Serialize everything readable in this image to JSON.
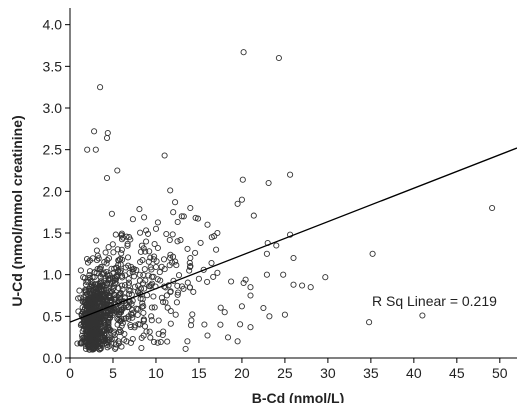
{
  "chart_data": {
    "type": "scatter",
    "xlabel": "B-Cd (nmol/L)",
    "ylabel": "U-Cd (nmol/mmol creatinine)",
    "xlim": [
      0,
      52
    ],
    "ylim": [
      0,
      4.2
    ],
    "xticks": [
      0,
      5,
      10,
      15,
      20,
      25,
      30,
      35,
      40,
      45,
      50
    ],
    "yticks": [
      0.0,
      0.5,
      1.0,
      1.5,
      2.0,
      2.5,
      3.0,
      3.5,
      4.0
    ],
    "ytick_labels": [
      "0.0",
      "0.5",
      "1.0",
      "1.5",
      "2.0",
      "2.5",
      "3.0",
      "3.5",
      "4.0"
    ],
    "grid": false,
    "marker": "open-circle",
    "fit_line": {
      "type": "linear",
      "points": [
        [
          0,
          0.43
        ],
        [
          52,
          2.52
        ]
      ]
    },
    "annotation": "R Sq Linear = 0.219",
    "notable_points": [
      [
        20.2,
        3.67
      ],
      [
        24.3,
        3.6
      ],
      [
        3.5,
        3.25
      ],
      [
        2.8,
        2.72
      ],
      [
        4.4,
        2.7
      ],
      [
        4.3,
        2.64
      ],
      [
        2.0,
        2.5
      ],
      [
        3.0,
        2.5
      ],
      [
        11.0,
        2.43
      ],
      [
        5.5,
        2.25
      ],
      [
        25.6,
        2.2
      ],
      [
        4.3,
        2.16
      ],
      [
        20.1,
        2.14
      ],
      [
        23.1,
        2.1
      ],
      [
        20.0,
        1.9
      ],
      [
        49.1,
        1.8
      ],
      [
        14.0,
        1.8
      ],
      [
        19.5,
        1.85
      ],
      [
        25.6,
        1.48
      ],
      [
        23.0,
        1.38
      ],
      [
        24.0,
        1.35
      ],
      [
        35.2,
        1.25
      ],
      [
        22.9,
        1.25
      ],
      [
        24.8,
        1.0
      ],
      [
        29.7,
        0.97
      ],
      [
        22.9,
        1.0
      ],
      [
        26.0,
        0.88
      ],
      [
        27.0,
        0.87
      ],
      [
        28.0,
        0.85
      ],
      [
        20.2,
        0.9
      ],
      [
        21.0,
        0.85
      ],
      [
        21.0,
        0.75
      ],
      [
        20.0,
        0.62
      ],
      [
        22.5,
        0.6
      ],
      [
        23.2,
        0.5
      ],
      [
        25.0,
        0.52
      ],
      [
        34.8,
        0.43
      ],
      [
        41.0,
        0.51
      ],
      [
        18.0,
        0.55
      ],
      [
        17.5,
        0.4
      ],
      [
        16.0,
        0.27
      ],
      [
        19.5,
        0.2
      ],
      [
        21.0,
        0.37
      ],
      [
        26.0,
        1.2
      ],
      [
        17.0,
        1.3
      ],
      [
        16.0,
        1.6
      ],
      [
        16.5,
        1.45
      ],
      [
        12.0,
        1.75
      ],
      [
        13.0,
        1.7
      ],
      [
        15.0,
        0.95
      ],
      [
        14.0,
        1.2
      ],
      [
        12.5,
        1.4
      ],
      [
        10.0,
        1.55
      ]
    ],
    "dense_clusters": [
      {
        "n": 500,
        "cx": 2.4,
        "cy": 0.45,
        "sx": 0.9,
        "sy": 0.22,
        "xmin": 0.6,
        "ymin": 0.1
      },
      {
        "n": 260,
        "cx": 3.8,
        "cy": 0.65,
        "sx": 1.7,
        "sy": 0.3,
        "xmin": 0.6,
        "ymin": 0.1
      },
      {
        "n": 160,
        "cx": 6.5,
        "cy": 0.85,
        "sx": 3.2,
        "sy": 0.38,
        "xmin": 0.8,
        "ymin": 0.1
      },
      {
        "n": 80,
        "cx": 11.0,
        "cy": 1.0,
        "sx": 4.2,
        "sy": 0.42,
        "xmin": 1.0,
        "ymin": 0.15
      }
    ]
  }
}
